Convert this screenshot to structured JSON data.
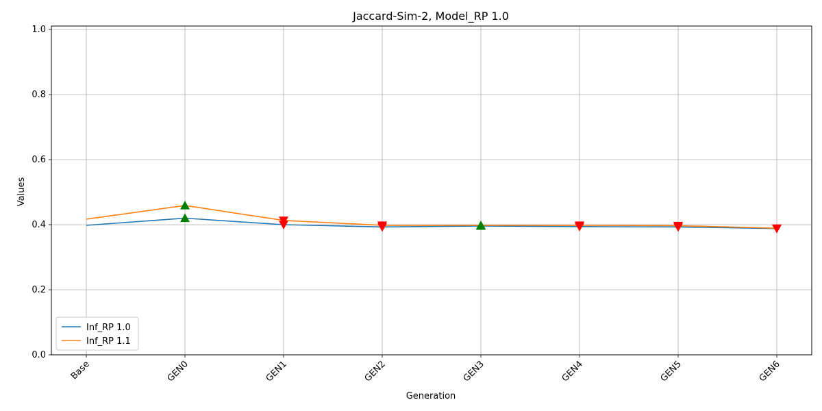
{
  "chart_data": {
    "type": "line",
    "title": "Jaccard-Sim-2, Model_RP 1.0",
    "xlabel": "Generation",
    "ylabel": "Values",
    "categories": [
      "Base",
      "GEN0",
      "GEN1",
      "GEN2",
      "GEN3",
      "GEN4",
      "GEN5",
      "GEN6"
    ],
    "ylim": [
      0,
      1.0
    ],
    "yticks": [
      0.0,
      0.2,
      0.4,
      0.6,
      0.8,
      1.0
    ],
    "grid": true,
    "legend_position": "lower-left",
    "series": [
      {
        "name": "Inf_RP 1.0",
        "color": "#1f77b4",
        "values": [
          0.398,
          0.42,
          0.4,
          0.393,
          0.396,
          0.394,
          0.393,
          0.388
        ]
      },
      {
        "name": "Inf_RP 1.1",
        "color": "#ff7f0e",
        "values": [
          0.417,
          0.459,
          0.413,
          0.398,
          0.398,
          0.398,
          0.397,
          0.389
        ]
      }
    ],
    "markers": [
      {
        "category": "GEN0",
        "value": 0.459,
        "direction": "up",
        "color": "#008000"
      },
      {
        "category": "GEN0",
        "value": 0.42,
        "direction": "up",
        "color": "#008000"
      },
      {
        "category": "GEN1",
        "value": 0.413,
        "direction": "down",
        "color": "#ff0000"
      },
      {
        "category": "GEN1",
        "value": 0.4,
        "direction": "down",
        "color": "#ff0000"
      },
      {
        "category": "GEN2",
        "value": 0.398,
        "direction": "down",
        "color": "#ff0000"
      },
      {
        "category": "GEN2",
        "value": 0.393,
        "direction": "down",
        "color": "#ff0000"
      },
      {
        "category": "GEN3",
        "value": 0.398,
        "direction": "up",
        "color": "#008000"
      },
      {
        "category": "GEN3",
        "value": 0.396,
        "direction": "up",
        "color": "#008000"
      },
      {
        "category": "GEN4",
        "value": 0.398,
        "direction": "down",
        "color": "#ff0000"
      },
      {
        "category": "GEN4",
        "value": 0.394,
        "direction": "down",
        "color": "#ff0000"
      },
      {
        "category": "GEN5",
        "value": 0.397,
        "direction": "down",
        "color": "#ff0000"
      },
      {
        "category": "GEN5",
        "value": 0.393,
        "direction": "down",
        "color": "#ff0000"
      },
      {
        "category": "GEN6",
        "value": 0.389,
        "direction": "down",
        "color": "#ff0000"
      },
      {
        "category": "GEN6",
        "value": 0.388,
        "direction": "down",
        "color": "#ff0000"
      }
    ]
  }
}
